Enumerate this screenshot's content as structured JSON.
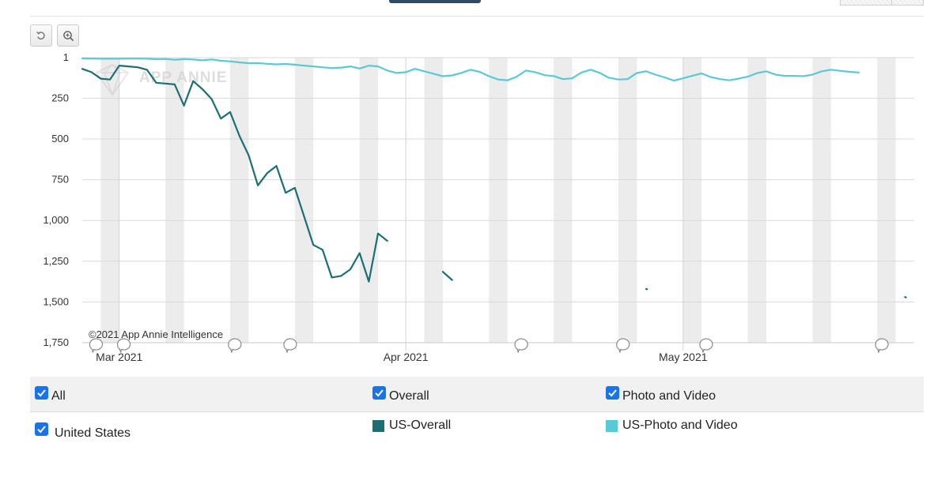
{
  "colors": {
    "us_overall": "#1b6f73",
    "us_photo_video": "#5bc8d6",
    "weekend_band": "#ececec",
    "checkbox": "#1a73e8"
  },
  "toolbar": {
    "reset_icon": "undo-icon",
    "zoom_icon": "zoom-in-icon"
  },
  "watermark": "APP ANNIE",
  "copyright": "©2021 App Annie Intelligence",
  "chart_data": {
    "type": "line",
    "title": "",
    "xlabel": "",
    "ylabel": "",
    "y_inverted": true,
    "ylim": [
      1,
      1750
    ],
    "y_ticks": [
      "1",
      "250",
      "500",
      "750",
      "1,000",
      "1,250",
      "1,500",
      "1,750"
    ],
    "y_tick_values": [
      1,
      250,
      500,
      750,
      1000,
      1250,
      1500,
      1750
    ],
    "x_ticks": [
      {
        "label": "Mar 2021",
        "day": 0
      },
      {
        "label": "Apr 2021",
        "day": 31
      },
      {
        "label": "May 2021",
        "day": 61
      }
    ],
    "xlim_days": [
      -4,
      86
    ],
    "weekend_band_start_days": [
      -2,
      5,
      12,
      19,
      26,
      33,
      40,
      47,
      54,
      61,
      68,
      75,
      82
    ],
    "annotation_marker_days": [
      -3,
      0,
      12,
      18,
      43,
      54,
      63,
      82
    ],
    "grid": true,
    "legend": "bottom",
    "series": [
      {
        "name": "US-Overall",
        "color": "#1b6f73",
        "segments": [
          [
            [
              -4,
              70
            ],
            [
              -3,
              90
            ],
            [
              -2,
              130
            ],
            [
              -1,
              135
            ],
            [
              0,
              50
            ],
            [
              1,
              55
            ],
            [
              2,
              60
            ],
            [
              3,
              75
            ],
            [
              4,
              155
            ],
            [
              5,
              160
            ],
            [
              6,
              165
            ],
            [
              7,
              295
            ],
            [
              8,
              145
            ],
            [
              9,
              195
            ],
            [
              10,
              255
            ],
            [
              11,
              375
            ],
            [
              12,
              335
            ],
            [
              13,
              480
            ],
            [
              14,
              600
            ],
            [
              15,
              785
            ],
            [
              16,
              710
            ],
            [
              17,
              665
            ],
            [
              18,
              830
            ],
            [
              19,
              800
            ],
            [
              20,
              975
            ],
            [
              21,
              1150
            ],
            [
              22,
              1180
            ],
            [
              23,
              1350
            ],
            [
              24,
              1340
            ],
            [
              25,
              1300
            ],
            [
              26,
              1200
            ],
            [
              27,
              1375
            ],
            [
              28,
              1080
            ],
            [
              29,
              1125
            ]
          ],
          [
            [
              35,
              1315
            ],
            [
              36,
              1365
            ]
          ],
          [
            [
              57,
              1420
            ],
            [
              57.1,
              1422
            ]
          ],
          [
            [
              85,
              1470
            ],
            [
              85.1,
              1472
            ]
          ]
        ]
      },
      {
        "name": "US-Photo and Video",
        "color": "#5bc8d6",
        "values": [
          [
            -4,
            6
          ],
          [
            -3,
            7
          ],
          [
            -2,
            8
          ],
          [
            -1,
            8
          ],
          [
            0,
            8
          ],
          [
            1,
            7
          ],
          [
            2,
            7
          ],
          [
            3,
            8
          ],
          [
            4,
            10
          ],
          [
            5,
            9
          ],
          [
            6,
            14
          ],
          [
            7,
            10
          ],
          [
            8,
            12
          ],
          [
            9,
            17
          ],
          [
            10,
            12
          ],
          [
            11,
            20
          ],
          [
            12,
            24
          ],
          [
            13,
            30
          ],
          [
            14,
            35
          ],
          [
            15,
            34
          ],
          [
            16,
            39
          ],
          [
            17,
            42
          ],
          [
            18,
            40
          ],
          [
            19,
            44
          ],
          [
            20,
            50
          ],
          [
            21,
            55
          ],
          [
            22,
            60
          ],
          [
            23,
            65
          ],
          [
            24,
            62
          ],
          [
            25,
            55
          ],
          [
            26,
            68
          ],
          [
            27,
            50
          ],
          [
            28,
            55
          ],
          [
            29,
            80
          ],
          [
            30,
            95
          ],
          [
            31,
            90
          ],
          [
            32,
            70
          ],
          [
            33,
            85
          ],
          [
            34,
            100
          ],
          [
            35,
            115
          ],
          [
            36,
            110
          ],
          [
            37,
            95
          ],
          [
            38,
            75
          ],
          [
            39,
            88
          ],
          [
            40,
            115
          ],
          [
            41,
            135
          ],
          [
            42,
            140
          ],
          [
            43,
            118
          ],
          [
            44,
            80
          ],
          [
            45,
            90
          ],
          [
            46,
            108
          ],
          [
            47,
            114
          ],
          [
            48,
            133
          ],
          [
            49,
            128
          ],
          [
            50,
            92
          ],
          [
            51,
            75
          ],
          [
            52,
            95
          ],
          [
            53,
            125
          ],
          [
            54,
            135
          ],
          [
            55,
            133
          ],
          [
            56,
            95
          ],
          [
            57,
            85
          ],
          [
            58,
            105
          ],
          [
            59,
            122
          ],
          [
            60,
            142
          ],
          [
            61,
            128
          ],
          [
            62,
            112
          ],
          [
            63,
            98
          ],
          [
            64,
            120
          ],
          [
            65,
            133
          ],
          [
            66,
            140
          ],
          [
            67,
            130
          ],
          [
            68,
            118
          ],
          [
            69,
            96
          ],
          [
            70,
            85
          ],
          [
            71,
            105
          ],
          [
            72,
            113
          ],
          [
            73,
            113
          ],
          [
            74,
            115
          ],
          [
            75,
            105
          ],
          [
            76,
            85
          ],
          [
            77,
            75
          ],
          [
            78,
            82
          ],
          [
            79,
            88
          ],
          [
            80,
            92
          ]
        ]
      }
    ]
  },
  "legend": {
    "row1": {
      "all_label": "All",
      "overall_label": "Overall",
      "photo_video_label": "Photo and Video"
    },
    "row2": {
      "country_label": "United States",
      "us_overall_label": "US-Overall",
      "us_photo_video_label": "US-Photo and Video"
    }
  }
}
